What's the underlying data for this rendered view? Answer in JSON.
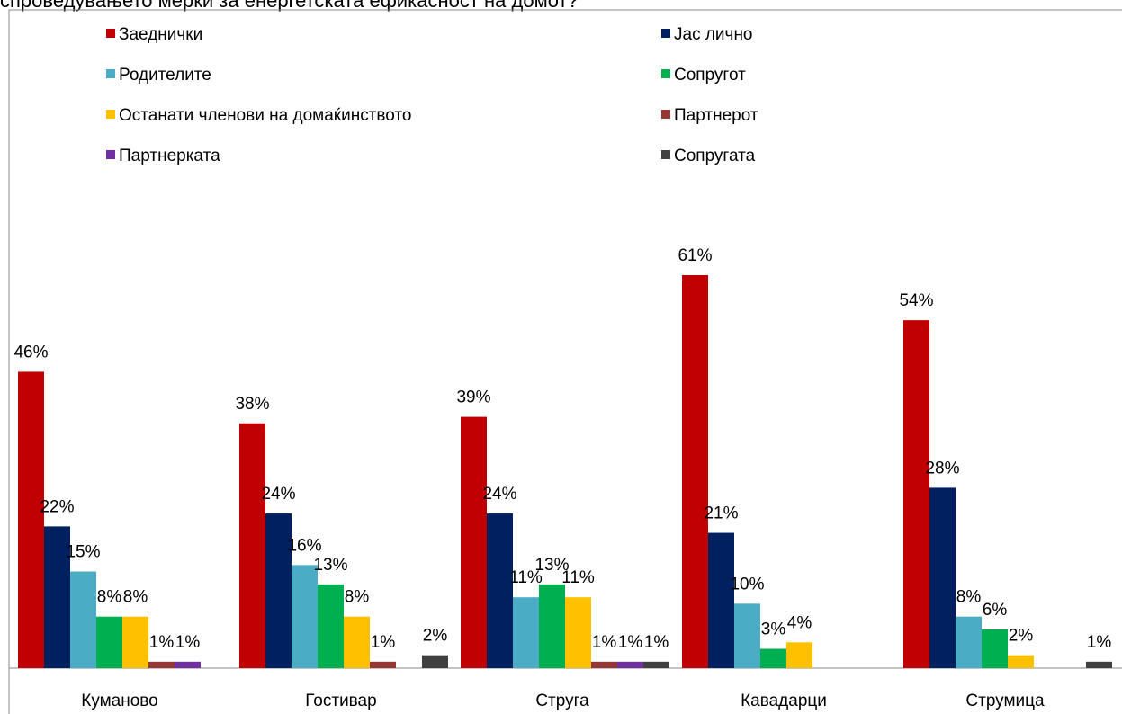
{
  "chart_data": {
    "type": "bar",
    "title": "спроведувањето мерки за енергетската ефикасност на домот?",
    "categories": [
      "Куманово",
      "Гостивар",
      "Струга",
      "Кавадарци",
      "Струмица"
    ],
    "ylim": [
      0,
      61
    ],
    "series": [
      {
        "name": "Заеднички",
        "color": "#c00000",
        "values": [
          46,
          38,
          39,
          61,
          54
        ],
        "value_labels": [
          "46%",
          "38%",
          "39%",
          "61%",
          "54%"
        ]
      },
      {
        "name": "Јас лично",
        "color": "#002060",
        "values": [
          22,
          24,
          24,
          21,
          28
        ],
        "value_labels": [
          "22%",
          "24%",
          "24%",
          "21%",
          "28%"
        ]
      },
      {
        "name": "Родителите",
        "color": "#4bacc6",
        "values": [
          15,
          16,
          11,
          10,
          8
        ],
        "value_labels": [
          "15%",
          "16%",
          "11%",
          "10%",
          "8%"
        ]
      },
      {
        "name": "Сопругот",
        "color": "#00b050",
        "values": [
          8,
          13,
          13,
          3,
          6
        ],
        "value_labels": [
          "8%",
          "13%",
          "13%",
          "3%",
          "6%"
        ]
      },
      {
        "name": "Останати членови на домаќинството",
        "color": "#ffc000",
        "values": [
          8,
          8,
          11,
          4,
          2
        ],
        "value_labels": [
          "8%",
          "8%",
          "11%",
          "4%",
          "2%"
        ]
      },
      {
        "name": "Партнерот",
        "color": "#953735",
        "values": [
          1,
          1,
          1,
          null,
          null
        ],
        "value_labels": [
          "1%",
          "1%",
          "1%",
          null,
          null
        ]
      },
      {
        "name": "Партнерката",
        "color": "#7030a0",
        "values": [
          1,
          null,
          1,
          null,
          null
        ],
        "value_labels": [
          "1%",
          null,
          "1%",
          null,
          null
        ]
      },
      {
        "name": "Сопругата",
        "color": "#404040",
        "values": [
          null,
          2,
          1,
          null,
          1
        ],
        "value_labels": [
          null,
          "2%",
          "1%",
          null,
          "1%"
        ]
      }
    ],
    "legend": "top"
  }
}
